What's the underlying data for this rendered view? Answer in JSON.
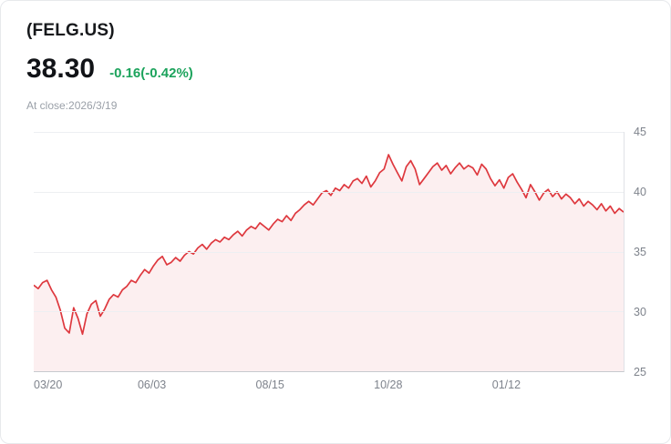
{
  "header": {
    "ticker": "(FELG.US)",
    "price": "38.30",
    "change": "-0.16(-0.42%)",
    "as_of": "At close:2026/3/19"
  },
  "colors": {
    "line": "#de383e",
    "area_fill": "rgba(222,56,62,0.08)",
    "change_text": "#1ca35c"
  },
  "chart_data": {
    "type": "area",
    "title": "FELG.US price history, 03/20 to 2026/3/19",
    "xlabel": "",
    "ylabel": "",
    "ylim": [
      25,
      45
    ],
    "grid": true,
    "x_tick_labels": [
      "03/20",
      "06/03",
      "08/15",
      "10/28",
      "01/12"
    ],
    "y_tick_labels": [
      "45",
      "40",
      "35",
      "30",
      "25"
    ],
    "series": [
      {
        "name": "FELG.US",
        "values": [
          32.2,
          31.9,
          32.4,
          32.6,
          31.8,
          31.2,
          30.1,
          28.6,
          28.2,
          30.3,
          29.4,
          28.1,
          29.8,
          30.6,
          30.9,
          29.6,
          30.2,
          31.0,
          31.4,
          31.2,
          31.8,
          32.1,
          32.6,
          32.4,
          33.0,
          33.5,
          33.2,
          33.8,
          34.3,
          34.6,
          33.9,
          34.1,
          34.5,
          34.2,
          34.7,
          35.0,
          34.8,
          35.3,
          35.6,
          35.2,
          35.7,
          36.0,
          35.8,
          36.2,
          36.0,
          36.4,
          36.7,
          36.3,
          36.8,
          37.1,
          36.9,
          37.4,
          37.1,
          36.8,
          37.3,
          37.7,
          37.5,
          38.0,
          37.6,
          38.2,
          38.5,
          38.9,
          39.2,
          38.9,
          39.4,
          39.9,
          40.1,
          39.7,
          40.3,
          40.1,
          40.6,
          40.3,
          40.9,
          41.1,
          40.7,
          41.3,
          40.4,
          40.9,
          41.6,
          41.9,
          43.1,
          42.3,
          41.6,
          40.9,
          42.1,
          42.6,
          41.9,
          40.6,
          41.1,
          41.6,
          42.1,
          42.4,
          41.8,
          42.2,
          41.5,
          42.0,
          42.4,
          41.9,
          42.2,
          42.0,
          41.4,
          42.3,
          41.9,
          41.1,
          40.5,
          41.0,
          40.3,
          41.2,
          41.5,
          40.8,
          40.2,
          39.5,
          40.6,
          40.0,
          39.3,
          39.9,
          40.2,
          39.6,
          40.0,
          39.4,
          39.8,
          39.5,
          39.0,
          39.4,
          38.8,
          39.2,
          38.9,
          38.5,
          39.0,
          38.4,
          38.8,
          38.2,
          38.6,
          38.3
        ]
      }
    ]
  }
}
